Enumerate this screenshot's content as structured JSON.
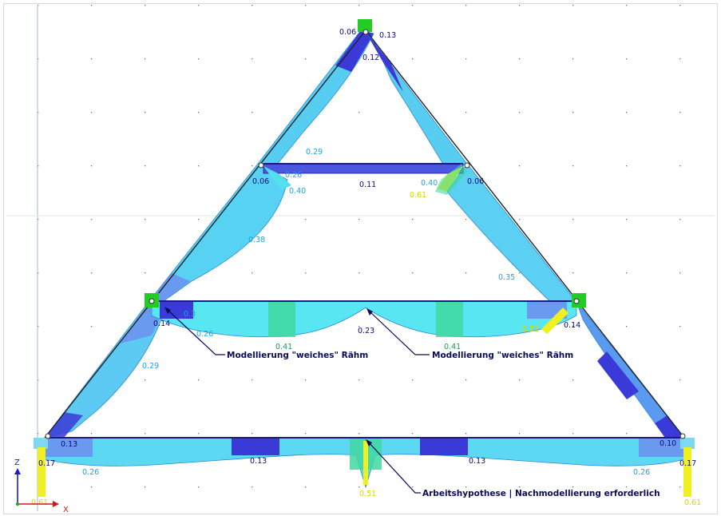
{
  "annotations": {
    "left_raehm": "Modellierung \"weiches\" Rähm",
    "right_raehm": "Modellierung \"weiches\" Rähm",
    "tie_beam": "Arbeitshypothese | Nachmodellierung erforderlich"
  },
  "axes": {
    "z_label": "Z",
    "x_label": "X"
  },
  "colors": {
    "dark_blue": "#3a3ad8",
    "mid_blue": "#5f8ef0",
    "light_blue": "#54c8f2",
    "cyan": "#52eef2",
    "green": "#3fd8a0",
    "yellow": "#f0f020",
    "support_green": "#22cc22",
    "text_dark": "#0b0b7a",
    "text_cyan": "#1aa6e0",
    "text_yellow": "#e8e800",
    "grid_dot": "#707070"
  },
  "values": {
    "apex_left": "0.06",
    "apex_right": "0.13",
    "apex_below": "0.12",
    "upper_left_rafter": "0.29",
    "upper_collar_left": "0.26",
    "upper_strut_left": "0.40",
    "upper_node_left": "0.06",
    "upper_collar_mid": "0.11",
    "upper_strut_right": "0.40",
    "upper_strut_right_yellow": "0.61",
    "upper_node_right": "0.06",
    "mid_left_rafter": "0.38",
    "mid_right_rafter": "0.35",
    "mid_node_left": "0.14",
    "mid_beam_left": "0.26",
    "mid_beam_left_small": "0.3",
    "mid_beam_center": "0.23",
    "mid_beam_left_peak": "0.41",
    "mid_beam_right_peak": "0.41",
    "mid_strut_right_yellow": "0.52",
    "mid_node_right": "0.14",
    "lower_left_rafter": "0.29",
    "bottom_left_node": "0.13",
    "bottom_left_support": "0.17",
    "bottom_left_span": "0.26",
    "bottom_left_mid": "0.13",
    "bottom_center_yellow": "0.51",
    "bottom_right_mid": "0.13",
    "bottom_right_span": "0.26",
    "bottom_right_node": "0.10",
    "bottom_right_support": "0.17",
    "bottom_right_yellow": "0.61",
    "bottom_left_yellow": "0.61"
  }
}
